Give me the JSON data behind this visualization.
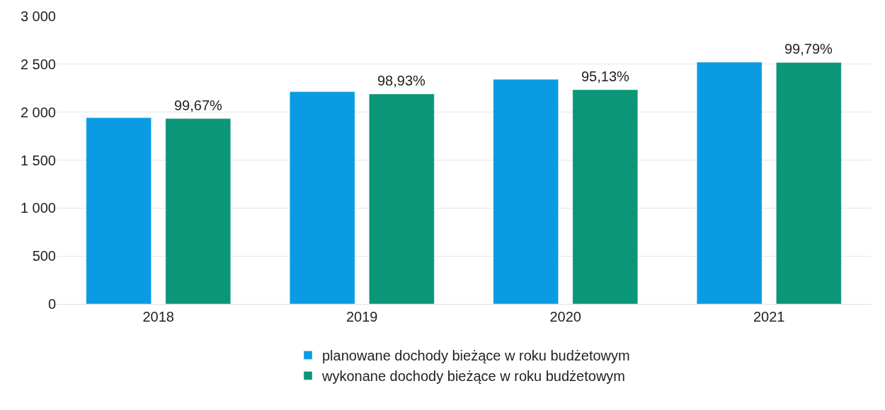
{
  "chart_data": {
    "type": "bar",
    "categories": [
      "2018",
      "2019",
      "2020",
      "2021"
    ],
    "series": [
      {
        "name": "planowane dochody bieżące w roku budżetowym",
        "color": "#0a9be3",
        "values": [
          1942,
          2213,
          2343,
          2521
        ]
      },
      {
        "name": "wykonane dochody bieżące w roku budżetowym",
        "color": "#0a9677",
        "values": [
          1933,
          2189,
          2234,
          2518
        ]
      }
    ],
    "annotations": [
      "99,67%",
      "98,93%",
      "95,13%",
      "99,79%"
    ],
    "ylim": [
      0,
      3000
    ],
    "yticks": [
      {
        "value": 0,
        "label": "0"
      },
      {
        "value": 500,
        "label": "500"
      },
      {
        "value": 1000,
        "label": "1 000"
      },
      {
        "value": 1500,
        "label": "1 500"
      },
      {
        "value": 2000,
        "label": "2 000"
      },
      {
        "value": 2500,
        "label": "2 500"
      },
      {
        "value": 3000,
        "label": "3 000"
      }
    ],
    "grid": "y",
    "legend": "bottom"
  }
}
